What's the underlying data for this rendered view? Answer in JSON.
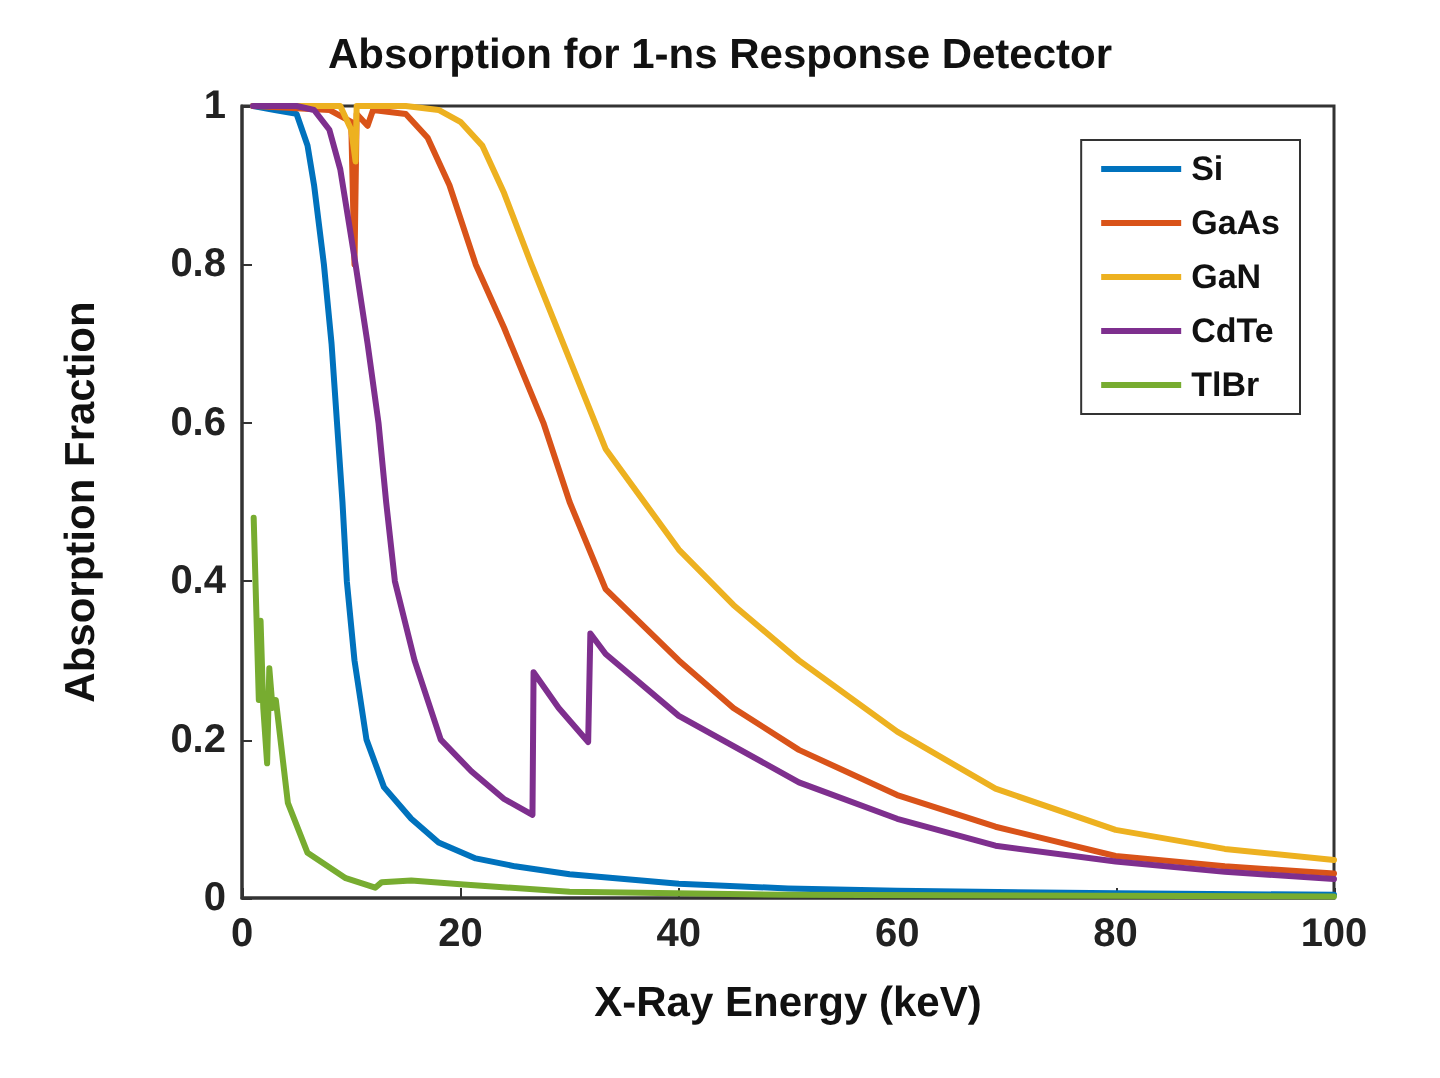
{
  "chart_data": {
    "type": "line",
    "title": "Absorption for 1-ns Response Detector",
    "xlabel": "X-Ray Energy (keV)",
    "ylabel": "Absorption Fraction",
    "xlim": [
      0,
      100
    ],
    "xticks": [
      0,
      20,
      40,
      60,
      80,
      100
    ],
    "ylim": [
      0,
      1
    ],
    "yticks": [
      0,
      0.2,
      0.4,
      0.6,
      0.8,
      1
    ],
    "grid": false,
    "legend": "top right",
    "marker": "none",
    "line_style": "solid",
    "series": [
      {
        "name": "Si",
        "color": "#0072bd",
        "x": [
          1,
          3,
          5,
          6,
          6.6,
          7.5,
          8.2,
          8.7,
          9.2,
          9.6,
          10.3,
          11.4,
          13,
          15.5,
          18,
          21.4,
          25,
          30,
          40,
          50,
          60,
          80,
          100
        ],
        "values": [
          1,
          0.995,
          0.99,
          0.95,
          0.9,
          0.8,
          0.7,
          0.6,
          0.5,
          0.4,
          0.3,
          0.2,
          0.14,
          0.1,
          0.07,
          0.05,
          0.04,
          0.03,
          0.018,
          0.012,
          0.009,
          0.006,
          0.004
        ]
      },
      {
        "name": "GaAs",
        "color": "#d95319",
        "x": [
          1,
          8,
          10,
          10.3,
          10.5,
          11.5,
          12,
          15,
          17,
          19,
          21.4,
          24,
          27.6,
          30,
          33.3,
          40,
          45,
          51,
          60,
          69,
          80,
          90,
          100
        ],
        "values": [
          1,
          0.995,
          0.98,
          0.8,
          0.99,
          0.975,
          0.995,
          0.99,
          0.96,
          0.9,
          0.8,
          0.72,
          0.6,
          0.5,
          0.39,
          0.3,
          0.24,
          0.187,
          0.13,
          0.09,
          0.053,
          0.04,
          0.031
        ]
      },
      {
        "name": "GaN",
        "color": "#edb120",
        "x": [
          1,
          9,
          10,
          10.4,
          10.5,
          15,
          18,
          20,
          22,
          24,
          26.5,
          30,
          33.3,
          40,
          45,
          51,
          60,
          69,
          80,
          90,
          100
        ],
        "values": [
          1,
          1,
          0.97,
          0.93,
          1,
          1,
          0.995,
          0.98,
          0.95,
          0.89,
          0.8,
          0.68,
          0.567,
          0.44,
          0.37,
          0.3,
          0.21,
          0.138,
          0.086,
          0.062,
          0.048
        ]
      },
      {
        "name": "CdTe",
        "color": "#7e2f8e",
        "x": [
          1,
          5,
          6.6,
          8,
          9,
          10.4,
          11.5,
          12.5,
          13.2,
          14,
          15.8,
          18.2,
          21,
          24,
          26.6,
          26.7,
          29,
          31.7,
          31.9,
          33.3,
          40,
          51,
          60,
          69,
          80,
          90,
          100
        ],
        "values": [
          1,
          1,
          0.995,
          0.97,
          0.92,
          0.8,
          0.7,
          0.6,
          0.5,
          0.4,
          0.3,
          0.2,
          0.16,
          0.125,
          0.105,
          0.285,
          0.24,
          0.197,
          0.334,
          0.308,
          0.23,
          0.146,
          0.1,
          0.066,
          0.046,
          0.033,
          0.024
        ]
      },
      {
        "name": "TlBr",
        "color": "#77ac30",
        "x": [
          1.07,
          1.54,
          1.7,
          1.95,
          2.3,
          2.5,
          2.8,
          3.1,
          4.2,
          6,
          9.5,
          12.2,
          12.8,
          15.5,
          20.3,
          30,
          50,
          100
        ],
        "values": [
          0.48,
          0.25,
          0.35,
          0.24,
          0.17,
          0.29,
          0.24,
          0.25,
          0.12,
          0.057,
          0.025,
          0.013,
          0.02,
          0.022,
          0.017,
          0.008,
          0.004,
          0.002
        ]
      }
    ]
  }
}
